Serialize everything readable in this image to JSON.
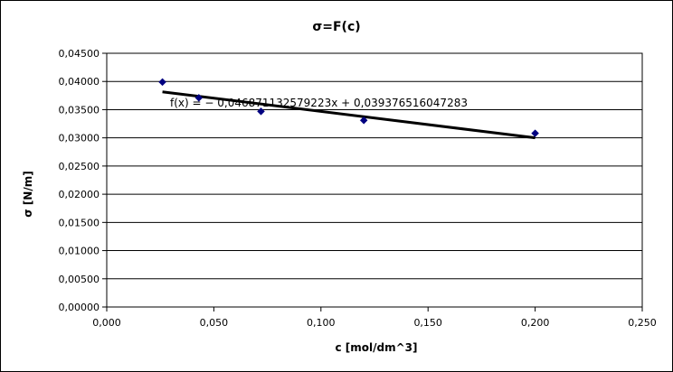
{
  "chart_data": {
    "type": "scatter",
    "title": "σ=F(c)",
    "xlabel": "c [mol/dm^3]",
    "ylabel": "σ [N/m]",
    "xlim": [
      0,
      0.25
    ],
    "ylim": [
      0,
      0.045
    ],
    "x_ticks": [
      "0,000",
      "0,050",
      "0,100",
      "0,150",
      "0,200",
      "0,250"
    ],
    "y_ticks": [
      "0,00000",
      "0,00500",
      "0,01000",
      "0,01500",
      "0,02000",
      "0,02500",
      "0,03000",
      "0,03500",
      "0,04000",
      "0,04500"
    ],
    "grid": "horizontal",
    "series": [
      {
        "marker": "diamond",
        "color": "#000080",
        "x": [
          0.026,
          0.043,
          0.072,
          0.12,
          0.2
        ],
        "y": [
          0.0399,
          0.0371,
          0.0347,
          0.0331,
          0.0308
        ]
      }
    ],
    "trendline": {
      "type": "linear",
      "slope": -0.046871132579223,
      "intercept": 0.039376516047283,
      "x_range": [
        0.026,
        0.2
      ],
      "color": "#000000",
      "equation": "f(x) = − 0,046871132579223x + 0,039376516047283"
    }
  }
}
